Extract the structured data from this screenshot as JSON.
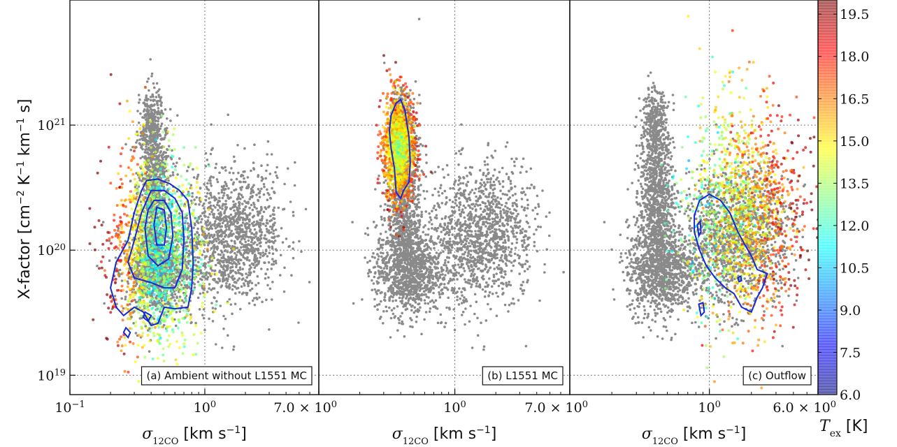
{
  "chart_data": {
    "type": "scatter",
    "yaxis": {
      "label_prefix": "X-factor [cm",
      "label_sup1": "−2",
      "label_mid1": " K",
      "label_sup2": "−1",
      "label_mid2": " km",
      "label_sup3": "−1",
      "label_suffix": " s]",
      "scale": "log",
      "range": [
        7e+18,
        1e+22
      ],
      "ticks": [
        {
          "value": 1e+19,
          "base": "10",
          "exp": "19"
        },
        {
          "value": 1e+20,
          "base": "10",
          "exp": "20"
        },
        {
          "value": 1e+21,
          "base": "10",
          "exp": "21"
        }
      ],
      "grid": true
    },
    "colorbar": {
      "label_sym": "T",
      "label_sub": "ex",
      "label_unit": " [K]",
      "range": [
        6.0,
        20.0
      ],
      "ticks": [
        "6.0",
        "7.5",
        "9.0",
        "10.5",
        "12.0",
        "13.5",
        "15.0",
        "16.5",
        "18.0",
        "19.5"
      ],
      "colormap": "jet (semi-transparent)"
    },
    "background_color": "#8a8a8a",
    "contour_color": "#1528d8",
    "panels": [
      {
        "label": "(a) Ambient without L1551 MC",
        "xlabel_sym": "σ",
        "xlabel_sub": "12CO",
        "xlabel_unit": " [km s",
        "xlabel_sup": "−1",
        "xlabel_end": "]",
        "xscale": "log",
        "xlim": [
          0.1,
          7.0
        ],
        "xticks": [
          {
            "value": 0.1,
            "base": "10",
            "exp": "−1"
          },
          {
            "value": 1.0,
            "base": "10",
            "exp": "0"
          },
          {
            "value": 7.0,
            "base": "7.0 × 10",
            "exp": "0"
          }
        ],
        "grid": true,
        "colored_region": {
          "x_range": [
            0.2,
            0.9
          ],
          "y_range": [
            1.5e+19,
            6e+20
          ],
          "temperature_trend": "warm (16–18 K) at low σ, cooler (11–13 K) at center"
        },
        "contours": [
          [
            [
              0.37,
              3.6e+20
            ],
            [
              0.45,
              3.7e+20
            ],
            [
              0.55,
              3.4e+20
            ],
            [
              0.65,
              3e+20
            ],
            [
              0.75,
              2.5e+20
            ],
            [
              0.8,
              1.5e+20
            ],
            [
              0.82,
              8e+19
            ],
            [
              0.8,
              5e+19
            ],
            [
              0.75,
              3.5e+19
            ],
            [
              0.6,
              3.4e+19
            ],
            [
              0.5,
              3.5e+19
            ],
            [
              0.45,
              2.6e+19
            ],
            [
              0.4,
              2.5e+19
            ],
            [
              0.35,
              3.2e+19
            ],
            [
              0.3,
              3.5e+19
            ],
            [
              0.25,
              3e+19
            ],
            [
              0.22,
              3.5e+19
            ],
            [
              0.2,
              5e+19
            ],
            [
              0.22,
              8e+19
            ],
            [
              0.27,
              1.2e+20
            ],
            [
              0.3,
              2e+20
            ],
            [
              0.34,
              3e+20
            ],
            [
              0.37,
              3.6e+20
            ]
          ],
          [
            [
              0.4,
              3e+20
            ],
            [
              0.5,
              3e+20
            ],
            [
              0.6,
              2.6e+20
            ],
            [
              0.68,
              2e+20
            ],
            [
              0.7,
              1.2e+20
            ],
            [
              0.68,
              7e+19
            ],
            [
              0.6,
              5e+19
            ],
            [
              0.5,
              5e+19
            ],
            [
              0.4,
              5.5e+19
            ],
            [
              0.3,
              6e+19
            ],
            [
              0.27,
              8e+19
            ],
            [
              0.3,
              1.2e+20
            ],
            [
              0.34,
              2e+20
            ],
            [
              0.4,
              3e+20
            ]
          ],
          [
            [
              0.42,
              2.5e+20
            ],
            [
              0.5,
              2.5e+20
            ],
            [
              0.56,
              2e+20
            ],
            [
              0.58,
              1.3e+20
            ],
            [
              0.54,
              8.5e+19
            ],
            [
              0.45,
              7.5e+19
            ],
            [
              0.38,
              9e+19
            ],
            [
              0.36,
              1.5e+20
            ],
            [
              0.38,
              2.1e+20
            ],
            [
              0.42,
              2.5e+20
            ]
          ],
          [
            [
              0.44,
              2.2e+20
            ],
            [
              0.5,
              2.1e+20
            ],
            [
              0.52,
              1.5e+20
            ],
            [
              0.5,
              1.1e+20
            ],
            [
              0.44,
              1.1e+20
            ],
            [
              0.42,
              1.6e+20
            ],
            [
              0.44,
              2.2e+20
            ]
          ],
          [
            [
              0.26,
              2.4e+19
            ],
            [
              0.28,
              2.2e+19
            ],
            [
              0.27,
              2e+19
            ],
            [
              0.25,
              2.2e+19
            ],
            [
              0.26,
              2.4e+19
            ]
          ],
          [
            [
              0.36,
              3.2e+19
            ],
            [
              0.4,
              3e+19
            ],
            [
              0.38,
              2.7e+19
            ],
            [
              0.35,
              2.9e+19
            ],
            [
              0.36,
              3.2e+19
            ]
          ]
        ]
      },
      {
        "label": "(b) L1551 MC",
        "xlabel_sym": "σ",
        "xlabel_sub": "12CO",
        "xlabel_unit": " [km s",
        "xlabel_sup": "−1",
        "xlabel_end": "]",
        "xscale": "log",
        "xlim": [
          0.1,
          7.0
        ],
        "xticks": [
          {
            "value": 1.0,
            "base": "10",
            "exp": "0"
          },
          {
            "value": 7.0,
            "base": "7.0 × 10",
            "exp": "0"
          }
        ],
        "grid": true,
        "colored_region": {
          "x_range": [
            0.3,
            0.5
          ],
          "y_range": [
            2.5e+20,
            1.7e+21
          ],
          "temperature_trend": "cool (12–15 K) in core, warmer at edges"
        },
        "contours": [
          [
            [
              0.37,
              1.5e+21
            ],
            [
              0.4,
              1.6e+21
            ],
            [
              0.43,
              1.3e+21
            ],
            [
              0.46,
              8e+20
            ],
            [
              0.47,
              5e+20
            ],
            [
              0.46,
              3.5e+20
            ],
            [
              0.42,
              3e+20
            ],
            [
              0.4,
              2.6e+20
            ],
            [
              0.37,
              2.9e+20
            ],
            [
              0.36,
              4.5e+20
            ],
            [
              0.34,
              6.5e+20
            ],
            [
              0.33,
              9e+20
            ],
            [
              0.34,
              1.2e+21
            ],
            [
              0.37,
              1.5e+21
            ]
          ]
        ]
      },
      {
        "label": "(c) Outflow",
        "xlabel_sym": "σ",
        "xlabel_sub": "12CO",
        "xlabel_unit": " [km s",
        "xlabel_sup": "−1",
        "xlabel_end": "]",
        "xscale": "log",
        "xlim": [
          0.1,
          6.0
        ],
        "xticks": [
          {
            "value": 1.0,
            "base": "10",
            "exp": "0"
          },
          {
            "value": 6.0,
            "base": "6.0 × 10",
            "exp": "0"
          }
        ],
        "grid": true,
        "colored_region": {
          "x_range": [
            0.7,
            4.5
          ],
          "y_range": [
            2.5e+19,
            1.5e+21
          ],
          "temperature_trend": "warm (16–19 K) at high σ"
        },
        "contours": [
          [
            [
              0.85,
              2.5e+20
            ],
            [
              1.0,
              2.8e+20
            ],
            [
              1.2,
              2.5e+20
            ],
            [
              1.4,
              2e+20
            ],
            [
              1.6,
              1.4e+20
            ],
            [
              1.8,
              1.1e+20
            ],
            [
              2.0,
              9e+19
            ],
            [
              2.2,
              7e+19
            ],
            [
              2.6,
              6.5e+19
            ],
            [
              2.4,
              5e+19
            ],
            [
              2.2,
              4.2e+19
            ],
            [
              2.0,
              3.2e+19
            ],
            [
              1.7,
              3.5e+19
            ],
            [
              1.5,
              4.5e+19
            ],
            [
              1.3,
              5e+19
            ],
            [
              1.1,
              6e+19
            ],
            [
              0.95,
              7.5e+19
            ],
            [
              0.85,
              1e+20
            ],
            [
              0.78,
              1.4e+20
            ],
            [
              0.78,
              1.9e+20
            ],
            [
              0.85,
              2.5e+20
            ]
          ],
          [
            [
              0.82,
              1.6e+20
            ],
            [
              0.86,
              1.7e+20
            ],
            [
              0.87,
              1.4e+20
            ],
            [
              0.84,
              1.3e+20
            ],
            [
              0.82,
              1.6e+20
            ]
          ],
          [
            [
              0.84,
              3.7e+19
            ],
            [
              0.9,
              3.8e+19
            ],
            [
              0.92,
              3.2e+19
            ],
            [
              0.87,
              3e+19
            ],
            [
              0.84,
              3.7e+19
            ]
          ],
          [
            [
              1.6,
              6e+19
            ],
            [
              1.68,
              6.2e+19
            ],
            [
              1.7,
              5.7e+19
            ],
            [
              1.63,
              5.6e+19
            ],
            [
              1.6,
              6e+19
            ]
          ]
        ]
      }
    ]
  }
}
